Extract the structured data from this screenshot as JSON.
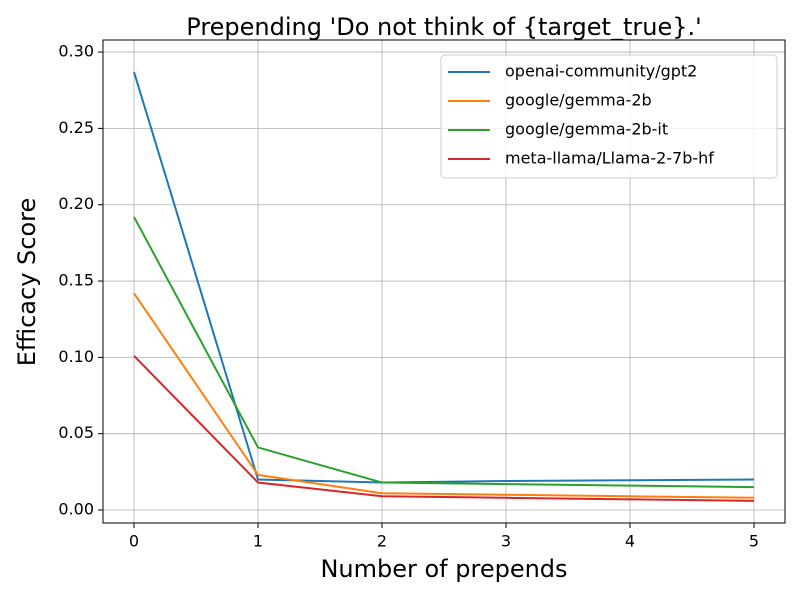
{
  "chart_data": {
    "type": "line",
    "title": "Prepending 'Do not think of {target_true}.'",
    "xlabel": "Number of prepends",
    "ylabel": "Efficacy Score",
    "x": [
      0,
      1,
      2,
      3,
      4,
      5
    ],
    "series": [
      {
        "name": "openai-community/gpt2",
        "color": "#1f77b4",
        "values": [
          0.287,
          0.02,
          0.018,
          0.019,
          0.0195,
          0.02
        ]
      },
      {
        "name": "google/gemma-2b",
        "color": "#ff7f0e",
        "values": [
          0.142,
          0.023,
          0.011,
          0.01,
          0.009,
          0.008
        ]
      },
      {
        "name": "google/gemma-2b-it",
        "color": "#2ca02c",
        "values": [
          0.192,
          0.041,
          0.018,
          0.017,
          0.016,
          0.015
        ]
      },
      {
        "name": "meta-llama/Llama-2-7b-hf",
        "color": "#d62728",
        "values": [
          0.101,
          0.018,
          0.009,
          0.008,
          0.007,
          0.006
        ]
      }
    ],
    "xlim": [
      -0.25,
      5.25
    ],
    "xticks": [
      0,
      1,
      2,
      3,
      4,
      5
    ],
    "ylim": [
      -0.0085,
      0.3079
    ],
    "yticks": [
      {
        "value": 0,
        "label": "0.00"
      },
      {
        "value": 0.05,
        "label": "0.05"
      },
      {
        "value": 0.1,
        "label": "0.10"
      },
      {
        "value": 0.15,
        "label": "0.15"
      },
      {
        "value": 0.2,
        "label": "0.20"
      },
      {
        "value": 0.25,
        "label": "0.25"
      },
      {
        "value": 0.3,
        "label": "0.30"
      }
    ],
    "grid": true,
    "legend": "upper right"
  }
}
